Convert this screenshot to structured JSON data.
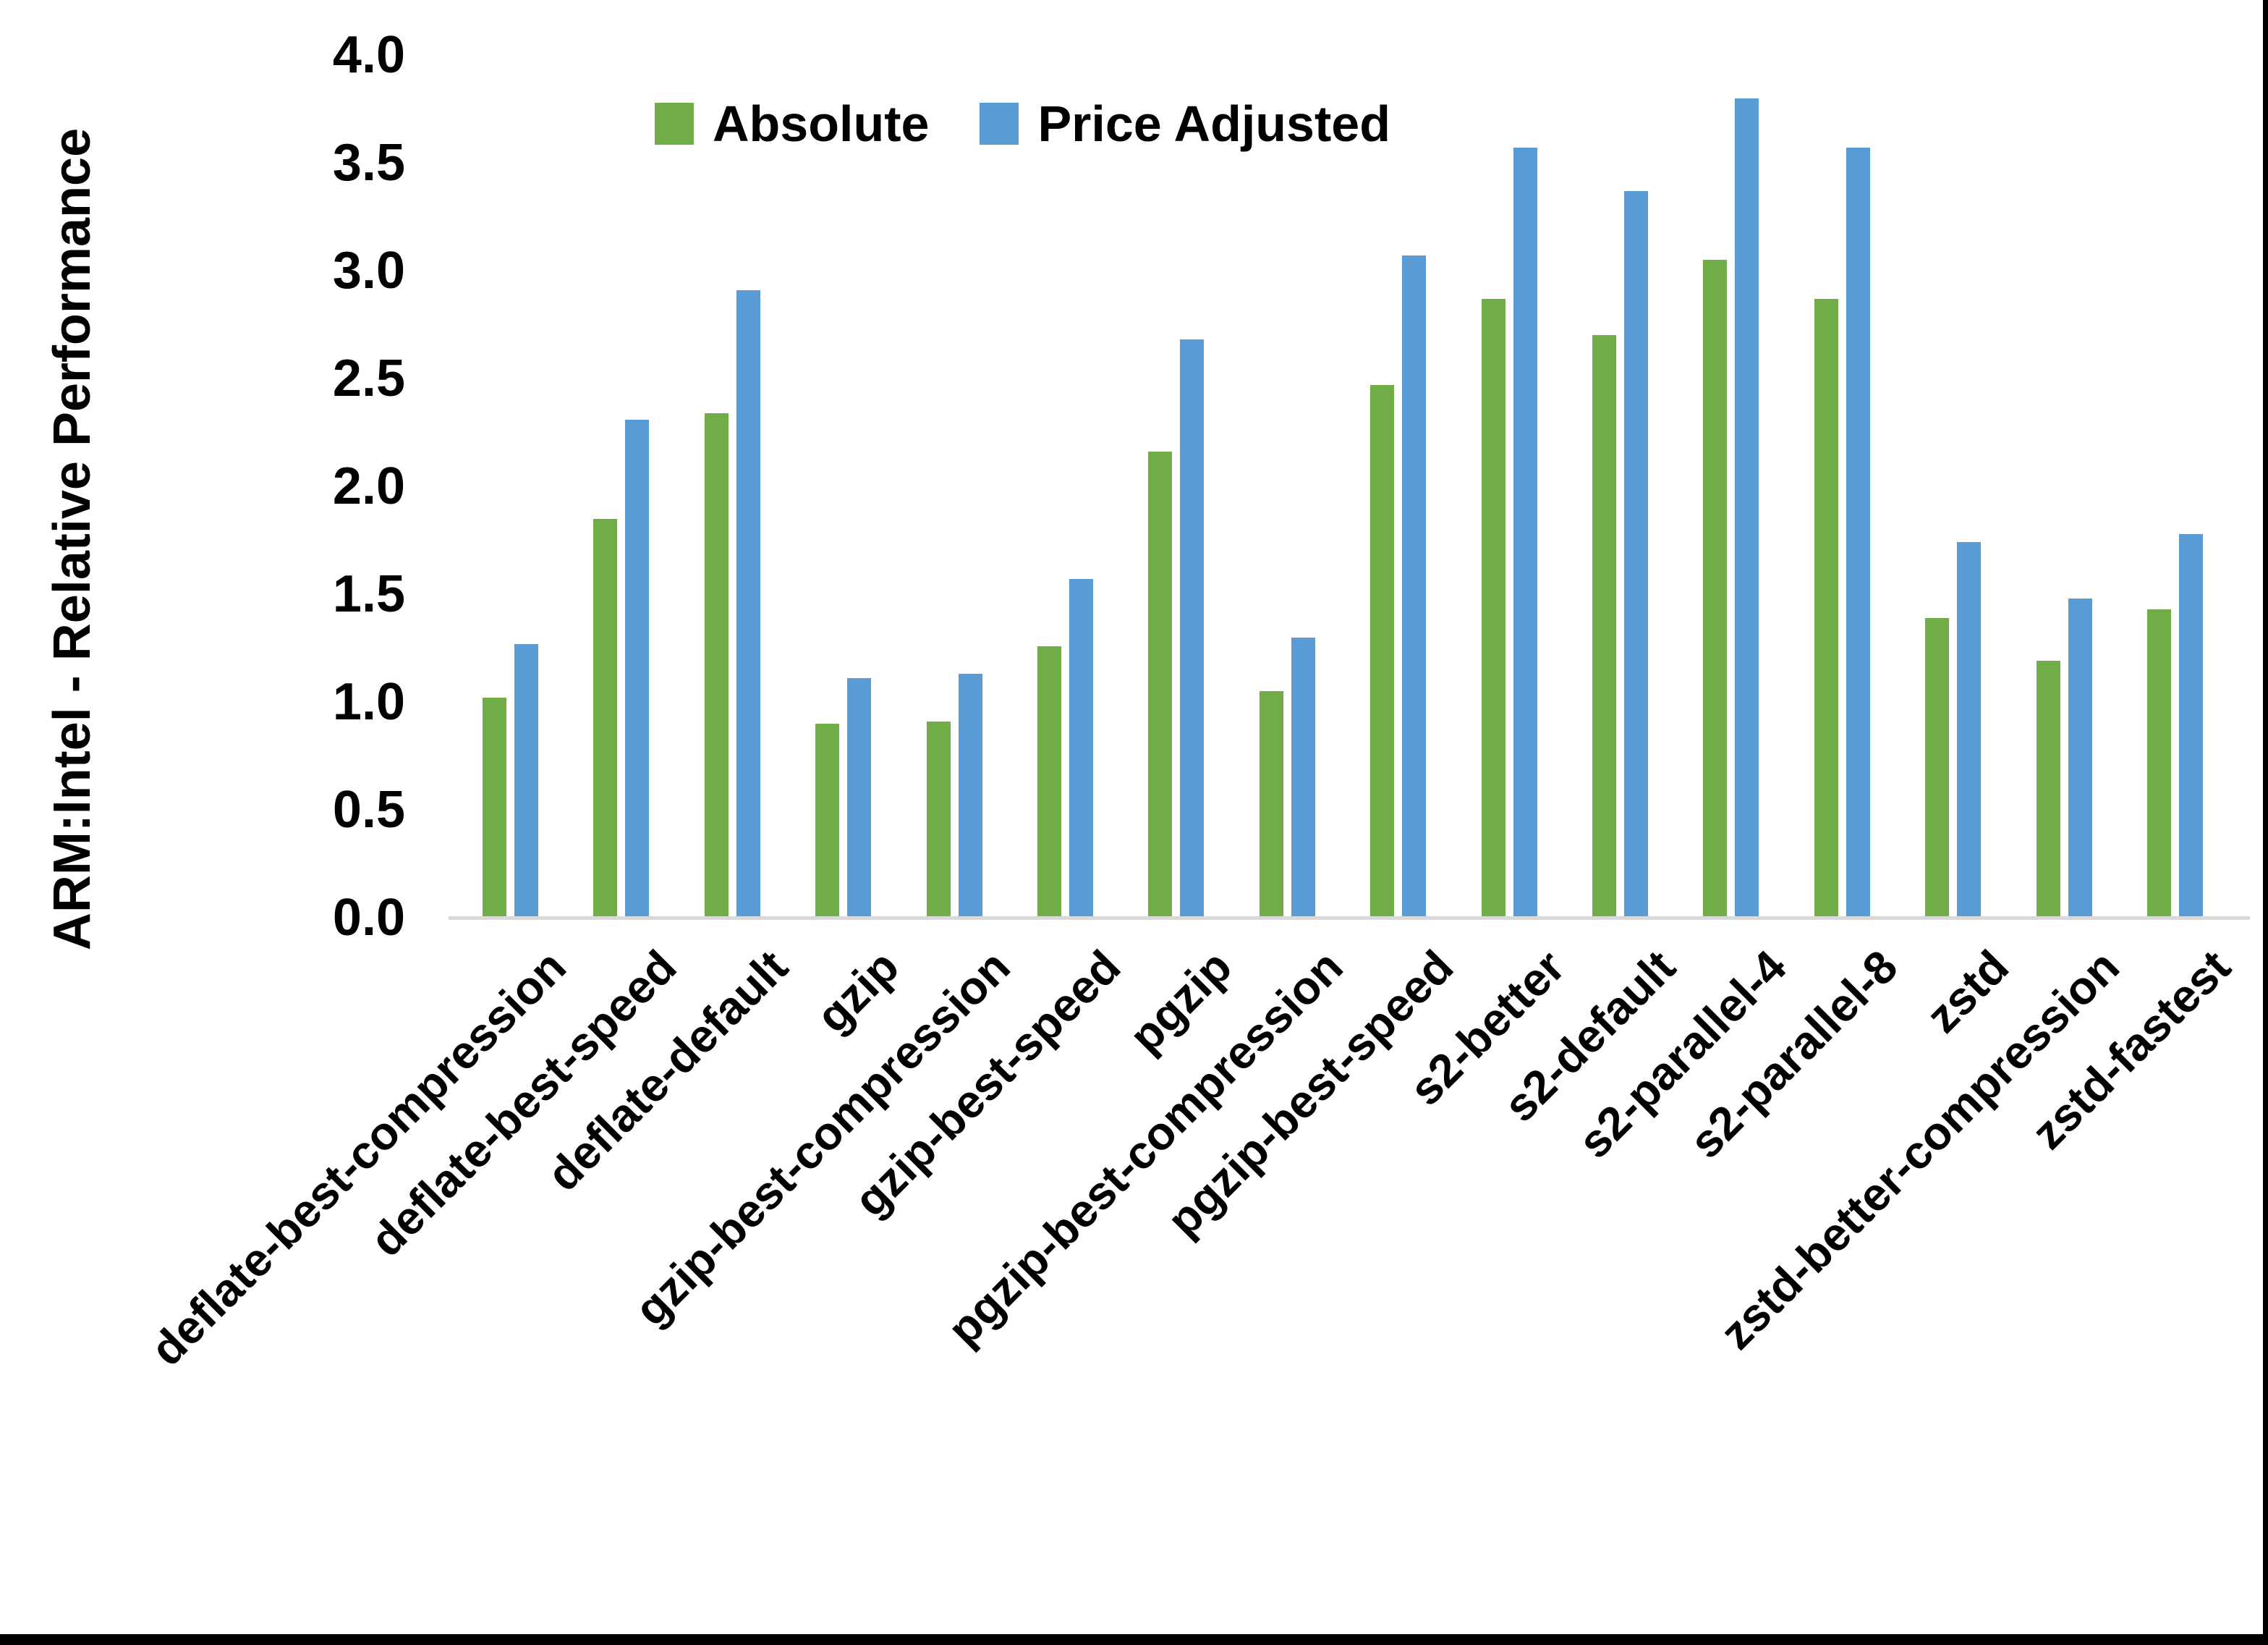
{
  "page": {
    "background_color": "#FFFFFF",
    "border_right_color": "#000000",
    "border_bottom_color": "#000000"
  },
  "chart_data": {
    "type": "bar",
    "title": "",
    "ylabel": "ARM:Intel - Relative Performance",
    "xlabel": "",
    "ylim": [
      0.0,
      4.0
    ],
    "ytick_step": 0.5,
    "ytick_labels": [
      "0.0",
      "0.5",
      "1.0",
      "1.5",
      "2.0",
      "2.5",
      "3.0",
      "3.5",
      "4.0"
    ],
    "grid": false,
    "legend_position": "top-center",
    "axis_line_color": "#D9D9D9",
    "categories": [
      "deflate-best-compression",
      "deflate-best-speed",
      "deflate-default",
      "gzip",
      "gzip-best-compression",
      "gzip-best-speed",
      "pgzip",
      "pgzip-best-compression",
      "pgzip-best-speed",
      "s2-better",
      "s2-default",
      "s2-parallel-4",
      "s2-parallel-8",
      "zstd",
      "zstd-better-compression",
      "zstd-fastest"
    ],
    "series": [
      {
        "name": "Absolute",
        "color": "#70AD47",
        "values": [
          1.02,
          1.85,
          2.34,
          0.9,
          0.91,
          1.26,
          2.16,
          1.05,
          2.47,
          2.87,
          2.7,
          3.05,
          2.87,
          1.39,
          1.19,
          1.43
        ]
      },
      {
        "name": "Price Adjusted",
        "color": "#5B9BD5",
        "values": [
          1.27,
          2.31,
          2.91,
          1.11,
          1.13,
          1.57,
          2.68,
          1.3,
          3.07,
          3.57,
          3.37,
          3.8,
          3.57,
          1.74,
          1.48,
          1.78
        ]
      }
    ]
  }
}
